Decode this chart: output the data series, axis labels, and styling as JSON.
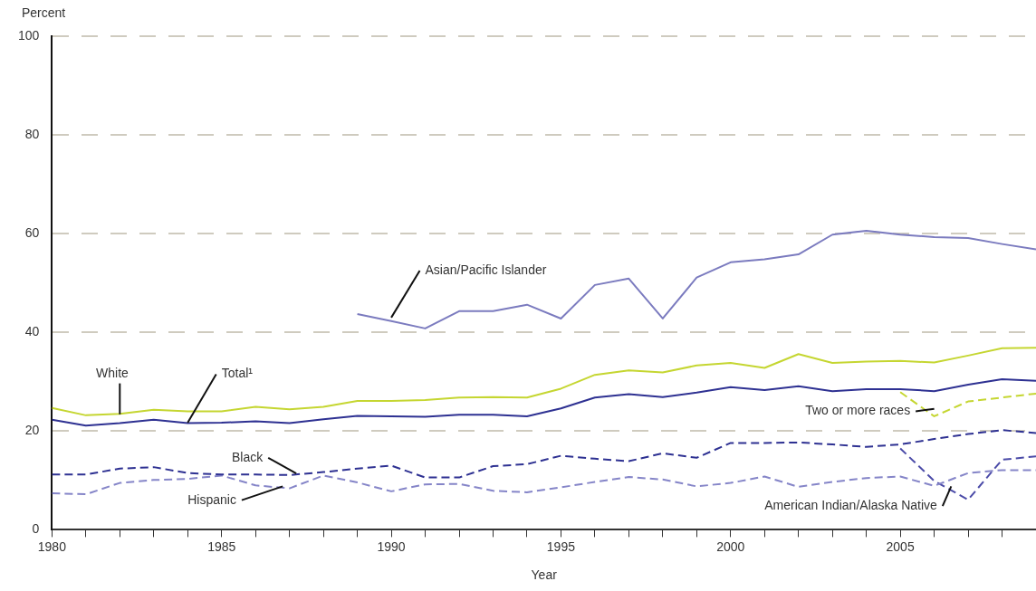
{
  "chart_data": {
    "type": "line",
    "xlabel": "Year",
    "ylabel": "Percent",
    "xlim": [
      1980,
      2009
    ],
    "ylim": [
      0,
      100
    ],
    "xticks": [
      1980,
      {
        "value": 1981,
        "label": null
      },
      {
        "value": 1982,
        "label": null
      },
      {
        "value": 1983,
        "label": null
      },
      {
        "value": 1984,
        "label": null
      },
      1985,
      {
        "value": 1986,
        "label": null
      },
      {
        "value": 1987,
        "label": null
      },
      {
        "value": 1988,
        "label": null
      },
      {
        "value": 1989,
        "label": null
      },
      1990,
      {
        "value": 1991,
        "label": null
      },
      {
        "value": 1992,
        "label": null
      },
      {
        "value": 1993,
        "label": null
      },
      {
        "value": 1994,
        "label": null
      },
      1995,
      {
        "value": 1996,
        "label": null
      },
      {
        "value": 1997,
        "label": null
      },
      {
        "value": 1998,
        "label": null
      },
      {
        "value": 1999,
        "label": null
      },
      2000,
      {
        "value": 2001,
        "label": null
      },
      {
        "value": 2002,
        "label": null
      },
      {
        "value": 2003,
        "label": null
      },
      {
        "value": 2004,
        "label": null
      },
      2005,
      {
        "value": 2006,
        "label": null
      },
      {
        "value": 2007,
        "label": null
      },
      {
        "value": 2008,
        "label": null
      }
    ],
    "yticks": [
      0,
      20,
      40,
      60,
      80,
      100
    ],
    "grid": "y",
    "legend": false,
    "marker": "none",
    "series": [
      {
        "name": "White",
        "color": "#c5d631",
        "line_style": "solid",
        "x": [
          1980,
          1981,
          1982,
          1983,
          1984,
          1985,
          1986,
          1987,
          1988,
          1989,
          1990,
          1991,
          1992,
          1993,
          1994,
          1995,
          1996,
          1997,
          1998,
          1999,
          2000,
          2001,
          2002,
          2003,
          2004,
          2005,
          2006,
          2007,
          2008,
          2009
        ],
        "values": [
          24.7,
          23.2,
          23.5,
          24.3,
          24,
          24,
          24.9,
          24.4,
          24.9,
          26.1,
          26.1,
          26.3,
          26.8,
          26.9,
          26.8,
          28.6,
          31.4,
          32.3,
          31.9,
          33.3,
          33.8,
          32.8,
          35.6,
          33.8,
          34.1,
          34.2,
          33.9,
          35.3,
          36.8,
          36.9
        ]
      },
      {
        "name": "Total¹",
        "color": "#2e3192",
        "line_style": "solid",
        "x": [
          1980,
          1981,
          1982,
          1983,
          1984,
          1985,
          1986,
          1987,
          1988,
          1989,
          1990,
          1991,
          1992,
          1993,
          1994,
          1995,
          1996,
          1997,
          1998,
          1999,
          2000,
          2001,
          2002,
          2003,
          2004,
          2005,
          2006,
          2007,
          2008,
          2009
        ],
        "values": [
          22.3,
          21.1,
          21.6,
          22.3,
          21.6,
          21.7,
          22,
          21.6,
          22.4,
          23.1,
          23,
          22.9,
          23.3,
          23.3,
          23,
          24.6,
          26.8,
          27.5,
          26.9,
          27.8,
          28.9,
          28.3,
          29.1,
          28.1,
          28.5,
          28.5,
          28.1,
          29.4,
          30.5,
          30.2
        ]
      },
      {
        "name": "Black",
        "color": "#2e3192",
        "line_style": "dashed",
        "x": [
          1980,
          1981,
          1982,
          1983,
          1984,
          1985,
          1986,
          1987,
          1988,
          1989,
          1990,
          1991,
          1992,
          1993,
          1994,
          1995,
          1996,
          1997,
          1998,
          1999,
          2000,
          2001,
          2002,
          2003,
          2004,
          2005,
          2006,
          2007,
          2008,
          2009
        ],
        "values": [
          11.2,
          11.2,
          12.4,
          12.7,
          11.5,
          11.2,
          11.2,
          11.1,
          11.7,
          12.4,
          13,
          10.6,
          10.6,
          12.9,
          13.3,
          15,
          14.4,
          13.9,
          15.5,
          14.6,
          17.6,
          17.6,
          17.7,
          17.3,
          16.8,
          17.3,
          18.4,
          19.4,
          20.2,
          19.6
        ]
      },
      {
        "name": "Hispanic",
        "color": "#8585c8",
        "line_style": "dashed",
        "x": [
          1980,
          1981,
          1982,
          1983,
          1984,
          1985,
          1986,
          1987,
          1988,
          1989,
          1990,
          1991,
          1992,
          1993,
          1994,
          1995,
          1996,
          1997,
          1998,
          1999,
          2000,
          2001,
          2002,
          2003,
          2004,
          2005,
          2006,
          2007,
          2008,
          2009
        ],
        "values": [
          7.4,
          7.2,
          9.5,
          10.1,
          10.3,
          11,
          9,
          8.4,
          11,
          9.6,
          7.8,
          9.2,
          9.3,
          7.9,
          7.6,
          8.6,
          9.7,
          10.7,
          10.2,
          8.8,
          9.5,
          10.8,
          8.7,
          9.7,
          10.5,
          10.8,
          8.9,
          11.5,
          12.1,
          12.1
        ]
      },
      {
        "name": "Asian/Pacific Islander",
        "color": "#7b7bbf",
        "line_style": "solid",
        "x": [
          1989,
          1990,
          1991,
          1992,
          1993,
          1994,
          1995,
          1996,
          1997,
          1998,
          1999,
          2000,
          2001,
          2002,
          2003,
          2004,
          2005,
          2006,
          2007,
          2008,
          2009
        ],
        "values": [
          43.7,
          42.3,
          40.8,
          44.3,
          44.3,
          45.6,
          42.8,
          49.6,
          50.9,
          42.8,
          51.1,
          54.2,
          54.8,
          55.8,
          59.8,
          60.6,
          59.8,
          59.3,
          59.1,
          57.9,
          56.8
        ]
      },
      {
        "name": "Two or more races",
        "color": "#c5d631",
        "line_style": "dashed",
        "x": [
          2005,
          2006,
          2007,
          2008,
          2009
        ],
        "values": [
          27.9,
          23,
          26,
          26.8,
          27.6
        ]
      },
      {
        "name": "American Indian/Alaska Native",
        "color": "#4b4ba8",
        "line_style": "dashed",
        "x": [
          2005,
          2006,
          2007,
          2008,
          2009
        ],
        "values": [
          16.5,
          9.9,
          6.1,
          14.2,
          14.9
        ]
      }
    ]
  }
}
